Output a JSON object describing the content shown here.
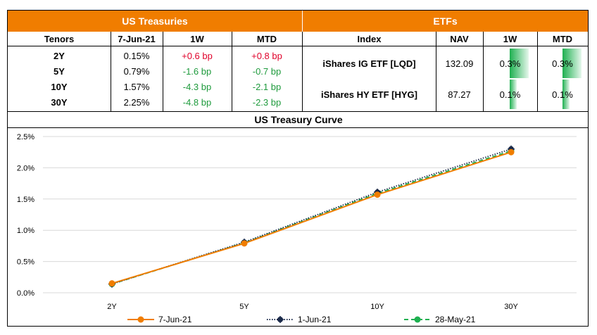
{
  "treasuries": {
    "title": "US Treasuries",
    "headers": [
      "Tenors",
      "7-Jun-21",
      "1W",
      "MTD"
    ],
    "rows": [
      {
        "tenor": "2Y",
        "yield": "0.15%",
        "w1": "+0.6 bp",
        "mtd": "+0.8 bp"
      },
      {
        "tenor": "5Y",
        "yield": "0.79%",
        "w1": "-1.6 bp",
        "mtd": "-0.7 bp"
      },
      {
        "tenor": "10Y",
        "yield": "1.57%",
        "w1": "-4.3 bp",
        "mtd": "-2.1 bp"
      },
      {
        "tenor": "30Y",
        "yield": "2.25%",
        "w1": "-4.8 bp",
        "mtd": "-2.3 bp"
      }
    ]
  },
  "etfs": {
    "title": "ETFs",
    "headers": [
      "Index",
      "NAV",
      "1W",
      "MTD"
    ],
    "rows": [
      {
        "index": "iShares IG ETF [LQD]",
        "nav": "132.09",
        "w1": "0.3%",
        "mtd": "0.3%",
        "w1_fill": 0.55,
        "mtd_fill": 0.55
      },
      {
        "index": "iShares HY ETF [HYG]",
        "nav": "87.27",
        "w1": "0.1%",
        "mtd": "0.1%",
        "w1_fill": 0.2,
        "mtd_fill": 0.2
      }
    ]
  },
  "colors": {
    "header_bg": "#f07d00",
    "positive": "#e0002a",
    "negative": "#1e9a3c",
    "bar": "#1eb050"
  },
  "chart_data": {
    "type": "line",
    "title": "US Treasury Curve",
    "categories": [
      "2Y",
      "5Y",
      "10Y",
      "30Y"
    ],
    "series": [
      {
        "name": "7-Jun-21",
        "values": [
          0.15,
          0.79,
          1.57,
          2.25
        ],
        "color": "#f07d00",
        "style": "solid",
        "marker": "circle"
      },
      {
        "name": "1-Jun-21",
        "values": [
          0.14,
          0.81,
          1.61,
          2.3
        ],
        "color": "#1b2a4a",
        "style": "dotted",
        "marker": "star"
      },
      {
        "name": "28-May-21",
        "values": [
          0.14,
          0.8,
          1.59,
          2.27
        ],
        "color": "#1eb050",
        "style": "dashed",
        "marker": "circle"
      }
    ],
    "yticks": [
      "0.0%",
      "0.5%",
      "1.0%",
      "1.5%",
      "2.0%",
      "2.5%"
    ],
    "ylim": [
      0,
      2.5
    ],
    "grid": true,
    "legend": "bottom"
  }
}
